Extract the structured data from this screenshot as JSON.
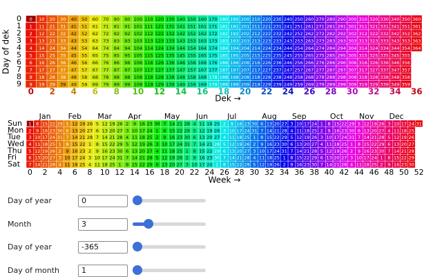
{
  "chart_data": [
    {
      "type": "dek-grid",
      "xlabel": "Dek →",
      "ylabel": "Day of dek",
      "xlim": [
        -0.5,
        36.5
      ],
      "ylim": [
        9.5,
        -0.5
      ],
      "xticks": [
        0,
        2,
        4,
        6,
        8,
        10,
        12,
        14,
        16,
        18,
        20,
        22,
        24,
        26,
        28,
        30,
        32,
        34,
        36
      ],
      "yticks": [
        0,
        1,
        2,
        3,
        4,
        5,
        6,
        7,
        8,
        9
      ],
      "values": [
        [
          0,
          1,
          2,
          3,
          4,
          5,
          6,
          7,
          8,
          9
        ],
        [
          10,
          11,
          12,
          13,
          14,
          15,
          16,
          17,
          18,
          19
        ],
        [
          20,
          21,
          22,
          23,
          24,
          25,
          26,
          27,
          28,
          29
        ],
        [
          30,
          31,
          32,
          33,
          34,
          35,
          36,
          37,
          38,
          39
        ],
        [
          40,
          41,
          42,
          43,
          44,
          45,
          46,
          47,
          48,
          49
        ],
        [
          50,
          51,
          52,
          53,
          54,
          55,
          56,
          57,
          58,
          59
        ],
        [
          60,
          61,
          62,
          63,
          64,
          65,
          66,
          67,
          68,
          69
        ],
        [
          70,
          71,
          72,
          73,
          74,
          75,
          76,
          77,
          78,
          79
        ],
        [
          80,
          81,
          82,
          83,
          84,
          85,
          86,
          87,
          88,
          89
        ],
        [
          90,
          91,
          92,
          93,
          94,
          95,
          96,
          97,
          98,
          99
        ],
        [
          100,
          101,
          102,
          103,
          104,
          105,
          106,
          107,
          108,
          109
        ],
        [
          110,
          111,
          112,
          113,
          114,
          115,
          116,
          117,
          118,
          119
        ],
        [
          120,
          121,
          122,
          123,
          124,
          125,
          126,
          127,
          128,
          129
        ],
        [
          130,
          131,
          132,
          133,
          134,
          135,
          136,
          137,
          138,
          139
        ],
        [
          140,
          141,
          142,
          143,
          144,
          145,
          146,
          147,
          148,
          149
        ],
        [
          150,
          151,
          152,
          153,
          154,
          155,
          156,
          157,
          158,
          159
        ],
        [
          160,
          161,
          162,
          163,
          164,
          165,
          166,
          167,
          168,
          169
        ],
        [
          170,
          171,
          172,
          173,
          174,
          175,
          176,
          177,
          178,
          179
        ],
        [
          180,
          181,
          182,
          183,
          184,
          185,
          186,
          187,
          188,
          189
        ],
        [
          190,
          191,
          192,
          193,
          194,
          195,
          196,
          197,
          198,
          199
        ],
        [
          200,
          201,
          202,
          203,
          204,
          205,
          206,
          207,
          208,
          209
        ],
        [
          210,
          211,
          212,
          213,
          214,
          215,
          216,
          217,
          218,
          219
        ],
        [
          220,
          221,
          222,
          223,
          224,
          225,
          226,
          227,
          228,
          229
        ],
        [
          230,
          231,
          232,
          233,
          234,
          235,
          236,
          237,
          238,
          239
        ],
        [
          240,
          241,
          242,
          243,
          244,
          245,
          246,
          247,
          248,
          249
        ],
        [
          250,
          251,
          252,
          253,
          254,
          255,
          256,
          257,
          258,
          259
        ],
        [
          260,
          261,
          262,
          263,
          264,
          265,
          266,
          267,
          268,
          269
        ],
        [
          270,
          271,
          272,
          273,
          274,
          275,
          276,
          277,
          278,
          279
        ],
        [
          280,
          281,
          282,
          283,
          284,
          285,
          286,
          287,
          288,
          289
        ],
        [
          290,
          291,
          292,
          293,
          294,
          295,
          296,
          297,
          298,
          299
        ],
        [
          300,
          301,
          302,
          303,
          304,
          305,
          306,
          307,
          308,
          309
        ],
        [
          310,
          311,
          312,
          313,
          314,
          315,
          316,
          317,
          318,
          319
        ],
        [
          320,
          321,
          322,
          323,
          324,
          325,
          326,
          327,
          328,
          329
        ],
        [
          330,
          331,
          332,
          333,
          334,
          335,
          336,
          337,
          338,
          339
        ],
        [
          340,
          341,
          342,
          343,
          344,
          345,
          346,
          347,
          348,
          349
        ],
        [
          350,
          351,
          352,
          353,
          354,
          355,
          356,
          357,
          358,
          359
        ],
        [
          360,
          361,
          362,
          363,
          364
        ]
      ]
    },
    {
      "type": "calendar",
      "xlabel": "Week →",
      "xlim": [
        -0.5,
        52.5
      ],
      "xticks": [
        0,
        2,
        4,
        6,
        8,
        10,
        12,
        14,
        16,
        18,
        20,
        22,
        24,
        26,
        28,
        30,
        32,
        34,
        36,
        38,
        40,
        42,
        44,
        46,
        48,
        50,
        52
      ],
      "categories": [
        "Sun",
        "Mon",
        "Tue",
        "Wed",
        "Thu",
        "Fri",
        "Sat"
      ],
      "months": [
        "Jan",
        "Feb",
        "Mar",
        "Apr",
        "May",
        "Jun",
        "Jul",
        "Aug",
        "Sep",
        "Oct",
        "Nov",
        "Dec"
      ],
      "values": [
        [
          1,
          2,
          3,
          4,
          5,
          6,
          7
        ],
        [
          8,
          9,
          10,
          11,
          12,
          13,
          14
        ],
        [
          15,
          16,
          17,
          18,
          19,
          20,
          21
        ],
        [
          22,
          23,
          24,
          25,
          26,
          27,
          28
        ],
        [
          29,
          30,
          31,
          1,
          2,
          3,
          4
        ],
        [
          5,
          6,
          7,
          8,
          9,
          10,
          11
        ],
        [
          12,
          13,
          14,
          15,
          16,
          17,
          18
        ],
        [
          19,
          20,
          21,
          22,
          23,
          24,
          25
        ],
        [
          26,
          27,
          28,
          1,
          2,
          3,
          4
        ],
        [
          5,
          6,
          7,
          8,
          9,
          10,
          11
        ],
        [
          12,
          13,
          14,
          15,
          16,
          17,
          18
        ],
        [
          19,
          20,
          21,
          22,
          23,
          24,
          25
        ],
        [
          26,
          27,
          28,
          29,
          30,
          31,
          1
        ],
        [
          2,
          3,
          4,
          5,
          6,
          7,
          8
        ],
        [
          9,
          10,
          11,
          12,
          13,
          14,
          15
        ],
        [
          16,
          17,
          18,
          19,
          20,
          21,
          22
        ],
        [
          23,
          24,
          25,
          26,
          27,
          28,
          29
        ],
        [
          30,
          1,
          2,
          3,
          4,
          5,
          6
        ],
        [
          7,
          8,
          9,
          10,
          11,
          12,
          13
        ],
        [
          14,
          15,
          16,
          17,
          18,
          19,
          20
        ],
        [
          21,
          22,
          23,
          24,
          25,
          26,
          27
        ],
        [
          28,
          29,
          30,
          31,
          1,
          2,
          3
        ],
        [
          4,
          5,
          6,
          7,
          8,
          9,
          10
        ],
        [
          11,
          12,
          13,
          14,
          15,
          16,
          17
        ],
        [
          18,
          19,
          20,
          21,
          22,
          23,
          24
        ],
        [
          25,
          26,
          27,
          28,
          29,
          30,
          1
        ],
        [
          2,
          3,
          4,
          5,
          6,
          7,
          8
        ],
        [
          9,
          10,
          11,
          12,
          13,
          14,
          15
        ],
        [
          16,
          17,
          18,
          19,
          20,
          21,
          22
        ],
        [
          23,
          24,
          25,
          26,
          27,
          28,
          29
        ],
        [
          30,
          31,
          1,
          2,
          3,
          4,
          5
        ],
        [
          6,
          7,
          8,
          9,
          10,
          11,
          12
        ],
        [
          13,
          14,
          15,
          16,
          17,
          18,
          19
        ],
        [
          20,
          21,
          22,
          23,
          24,
          25,
          26
        ],
        [
          27,
          28,
          29,
          30,
          31,
          1,
          2
        ],
        [
          3,
          4,
          5,
          6,
          7,
          8,
          9
        ],
        [
          10,
          11,
          12,
          13,
          14,
          15,
          16
        ],
        [
          17,
          18,
          19,
          20,
          21,
          22,
          23
        ],
        [
          24,
          25,
          26,
          27,
          28,
          29,
          30
        ],
        [
          1,
          2,
          3,
          4,
          5,
          6,
          7
        ],
        [
          8,
          9,
          10,
          11,
          12,
          13,
          14
        ],
        [
          15,
          16,
          17,
          18,
          19,
          20,
          21
        ],
        [
          22,
          23,
          24,
          25,
          26,
          27,
          28
        ],
        [
          29,
          30,
          31,
          1,
          2,
          3,
          4
        ],
        [
          5,
          6,
          7,
          8,
          9,
          10,
          11
        ],
        [
          12,
          13,
          14,
          15,
          16,
          17,
          18
        ],
        [
          19,
          20,
          21,
          22,
          23,
          24,
          25
        ],
        [
          26,
          27,
          28,
          29,
          30,
          1,
          2
        ],
        [
          3,
          4,
          5,
          6,
          7,
          8,
          9
        ],
        [
          10,
          11,
          12,
          13,
          14,
          15,
          16
        ],
        [
          17,
          18,
          19,
          20,
          21,
          22,
          23
        ],
        [
          24,
          25,
          26,
          27,
          28,
          29,
          30
        ],
        [
          31
        ]
      ]
    }
  ],
  "controls": [
    {
      "label": "Day of year",
      "value": 0
    },
    {
      "label": "Month",
      "value": 3
    },
    {
      "label": "Day of year",
      "value": -365
    },
    {
      "label": "Day of month",
      "value": 1
    }
  ]
}
